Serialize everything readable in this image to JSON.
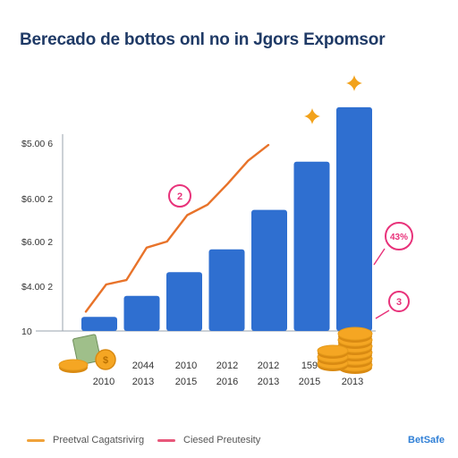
{
  "title": "Berecado de bottos onl no in Jgors Expomsor",
  "chart_data": {
    "type": "bar",
    "title": "Berecado de bottos onl no in Jgors Expomsor",
    "y_tick_labels": [
      "$5.00 6",
      "$6.00 2",
      "$6.00 2",
      "$4.00 2",
      "10"
    ],
    "category_labels_top": [
      "",
      "2044",
      "2010",
      "2012",
      "2012",
      "159",
      ""
    ],
    "category_labels_bottom": [
      "2010",
      "2013",
      "2015",
      "2016",
      "2013",
      "2015",
      "2013"
    ],
    "bar_values": [
      1.6,
      4.0,
      6.7,
      9.3,
      13.8,
      19.3,
      25.5
    ],
    "line_values": [
      2.2,
      5.3,
      5.8,
      9.5,
      10.2,
      13.2,
      14.4,
      16.8,
      19.4,
      21.2
    ],
    "ylim": [
      0,
      26
    ],
    "annotations": [
      {
        "label": "2",
        "color": "#e8327a"
      },
      {
        "label": "43%",
        "color": "#e8327a"
      },
      {
        "label": "3",
        "color": "#e8327a"
      }
    ],
    "colors": {
      "bar": "#2f6fd0",
      "line": "#e8732a",
      "accent": "#e8327a",
      "coin": "#f5a623",
      "sparkle": "#f2a21b"
    }
  },
  "legend": [
    {
      "label": "Preetval Cagatsrivirg",
      "color": "#f0a23a"
    },
    {
      "label": "Ciesed Preutesity",
      "color": "#e8577a"
    }
  ],
  "brand": "BetSafe"
}
